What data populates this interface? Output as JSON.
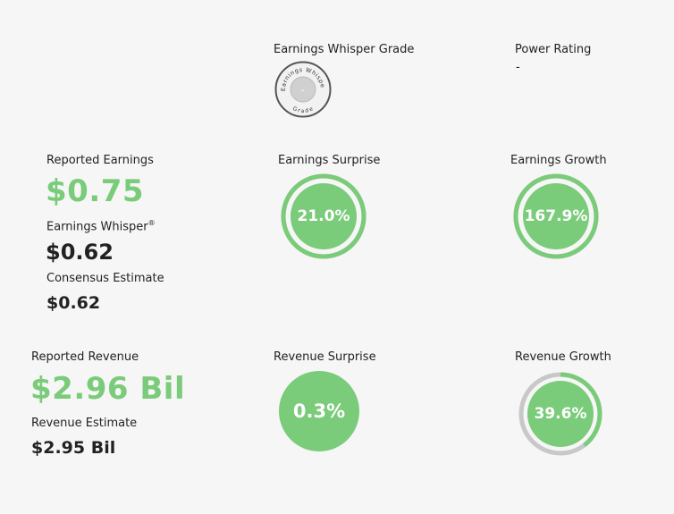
{
  "grade": {
    "title": "Earnings Whisper Grade",
    "badge_top_text": "Earnings Whisper",
    "badge_bottom_text": "Grade",
    "value": "-"
  },
  "power_rating": {
    "title": "Power Rating",
    "value": "-"
  },
  "earnings": {
    "reported_label": "Reported Earnings",
    "reported_value": "$0.75",
    "whisper_label": "Earnings Whisper",
    "whisper_mark": "®",
    "whisper_value": "$0.62",
    "consensus_label": "Consensus Estimate",
    "consensus_value": "$0.62"
  },
  "earnings_surprise": {
    "title": "Earnings Surprise",
    "value": "21.0%",
    "fill_fraction": 1.0
  },
  "earnings_growth": {
    "title": "Earnings Growth",
    "value": "167.9%",
    "fill_fraction": 1.0
  },
  "revenue": {
    "reported_label": "Reported Revenue",
    "reported_value": "$2.96 Bil",
    "estimate_label": "Revenue Estimate",
    "estimate_value": "$2.95 Bil"
  },
  "revenue_surprise": {
    "title": "Revenue Surprise",
    "value": "0.3%",
    "fill_fraction": 0.003
  },
  "revenue_growth": {
    "title": "Revenue Growth",
    "value": "39.6%",
    "fill_fraction": 0.396
  },
  "colors": {
    "green": "#7acb7a",
    "track": "#c8c8c8",
    "dark": "#222222"
  }
}
